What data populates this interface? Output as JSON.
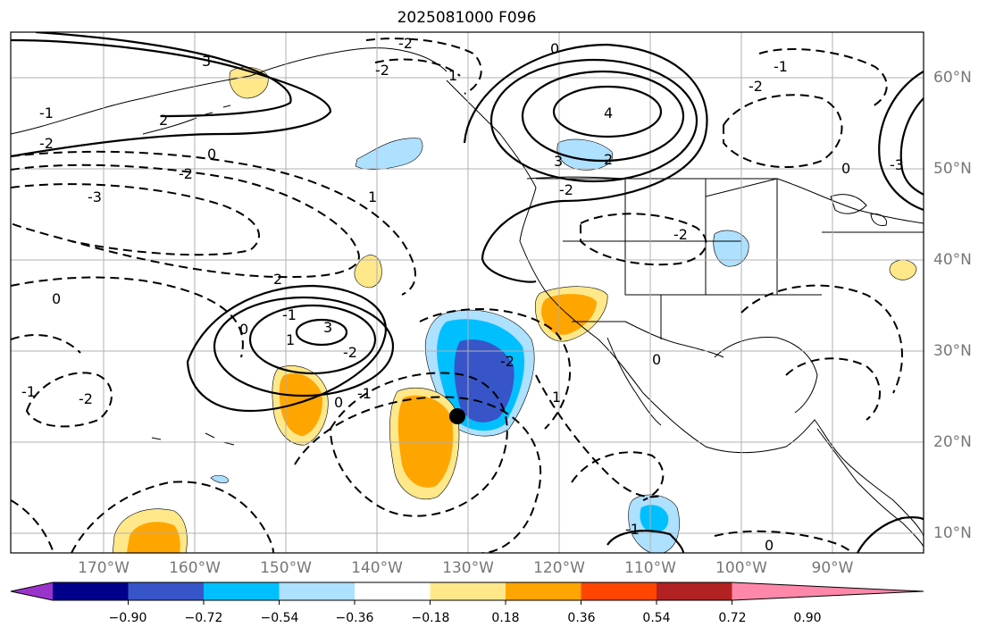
{
  "title": "2025081000 F096",
  "lon_labels": [
    "170°W",
    "160°W",
    "150°W",
    "140°W",
    "130°W",
    "120°W",
    "110°W",
    "100°W",
    "90°W"
  ],
  "lat_labels": [
    "60°N",
    "50°N",
    "40°N",
    "30°N",
    "20°N",
    "10°N"
  ],
  "colorbar": {
    "labels": [
      "−0.90",
      "−0.72",
      "−0.54",
      "−0.36",
      "−0.18",
      "0.18",
      "0.36",
      "0.54",
      "0.72",
      "0.90"
    ],
    "colors": [
      "#9a33cc",
      "#00008b",
      "#3755c8",
      "#00bfff",
      "#aee0ff",
      "#ffffff",
      "#ffe88a",
      "#ffa500",
      "#ff4500",
      "#b22222",
      "#ff88aa"
    ]
  },
  "contour_labels": [
    "-2",
    "0",
    "1",
    "3",
    "-1",
    "2",
    "4",
    "3",
    "-3",
    "-2",
    "0",
    "1",
    "2",
    "3",
    "-1",
    "-2",
    "0",
    "-1",
    "-2",
    "0",
    "-1",
    "0",
    "1",
    "-1",
    "-2",
    "-3",
    "-2",
    "-2",
    "-1",
    "2",
    "-2",
    "0",
    "-2",
    "0",
    "1",
    "-2",
    "0"
  ],
  "marker": "storm-center-dot"
}
